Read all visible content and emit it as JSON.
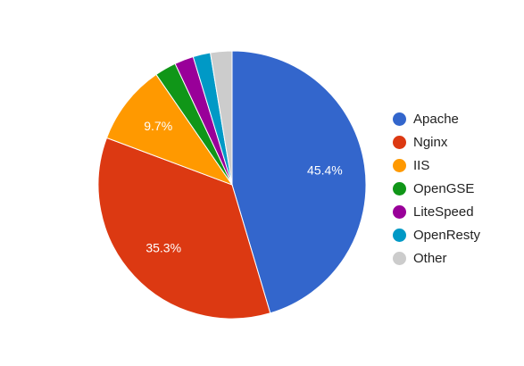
{
  "chart_data": {
    "type": "pie",
    "slices": [
      {
        "name": "Apache",
        "value": 45.4,
        "label": "45.4%",
        "color": "#3366cc"
      },
      {
        "name": "Nginx",
        "value": 35.3,
        "label": "35.3%",
        "color": "#dc3912"
      },
      {
        "name": "IIS",
        "value": 9.7,
        "label": "9.7%",
        "color": "#ff9900"
      },
      {
        "name": "OpenGSE",
        "value": 2.6,
        "label": "",
        "color": "#109618"
      },
      {
        "name": "LiteSpeed",
        "value": 2.3,
        "label": "",
        "color": "#990099"
      },
      {
        "name": "OpenResty",
        "value": 2.1,
        "label": "",
        "color": "#0099c6"
      },
      {
        "name": "Other",
        "value": 2.6,
        "label": "",
        "color": "#cccccc"
      }
    ],
    "legend_position": "right"
  }
}
